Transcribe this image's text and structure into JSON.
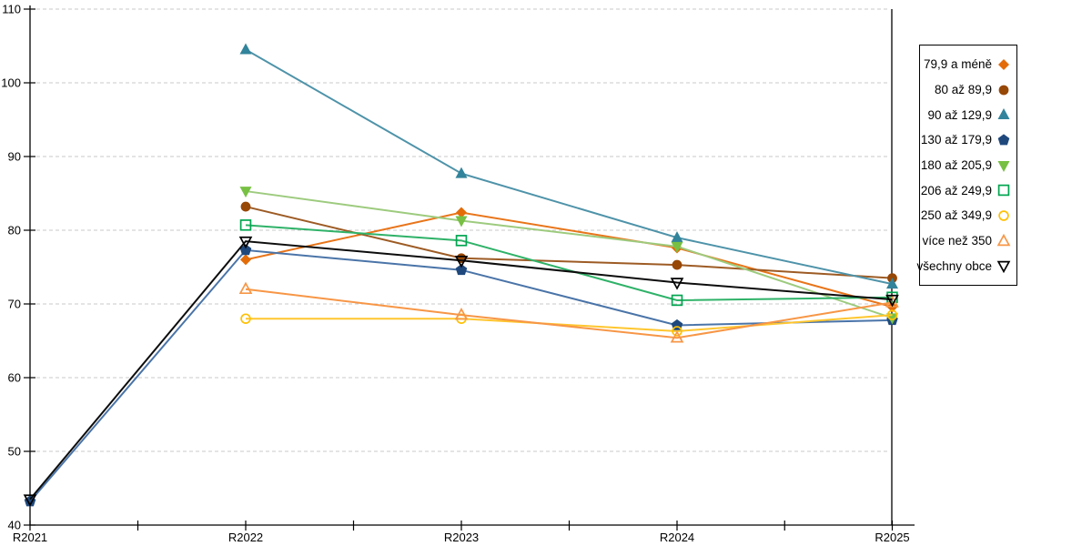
{
  "page": {
    "background": "#FFFFFF"
  },
  "chart_data": {
    "type": "line",
    "title": "",
    "xlabel": "",
    "ylabel": "",
    "categories": [
      "R2021",
      "R2022",
      "R2023",
      "R2024",
      "R2025"
    ],
    "ylim": [
      40,
      110
    ],
    "ytick_step": 10,
    "ytick_labels": [
      "40",
      "50",
      "60",
      "70",
      "80",
      "90",
      "100",
      "110"
    ],
    "grid": "horizontal dashed",
    "grid_color": "#C9C9C9",
    "axis_color": "#000000",
    "legend_position": "right-box",
    "series": [
      {
        "name": "79,9 a méně",
        "marker": "diamond",
        "marker_style": "filled",
        "color": "#E36C09",
        "line_color": "#E8751A",
        "values": [
          null,
          76.0,
          82.4,
          77.6,
          69.6
        ]
      },
      {
        "name": "80 až 89,9",
        "marker": "circle",
        "marker_style": "filled",
        "color": "#974706",
        "line_color": "#9D5B24",
        "values": [
          null,
          83.2,
          76.2,
          75.3,
          73.5
        ]
      },
      {
        "name": "90 až 129,9",
        "marker": "triangle-up",
        "marker_style": "filled",
        "color": "#31849B",
        "line_color": "#4E93A9",
        "values": [
          null,
          104.5,
          87.7,
          79.0,
          72.7
        ]
      },
      {
        "name": "130 až 179,9",
        "marker": "pentagon",
        "marker_style": "filled",
        "color": "#1F497D",
        "line_color": "#4A74A8",
        "values": [
          43.2,
          77.3,
          74.6,
          67.1,
          67.8
        ]
      },
      {
        "name": "180 až 205,9",
        "marker": "triangle-down",
        "marker_style": "filled",
        "color": "#77C043",
        "line_color": "#9DCB7E",
        "values": [
          null,
          85.3,
          81.3,
          77.8,
          68.1
        ]
      },
      {
        "name": "206 až 249,9",
        "marker": "square",
        "marker_style": "open",
        "color": "#00A550",
        "line_color": "#2FB268",
        "values": [
          null,
          80.7,
          78.6,
          70.5,
          70.9
        ]
      },
      {
        "name": "250 až 349,9",
        "marker": "circle",
        "marker_style": "open",
        "color": "#FFC000",
        "line_color": "#FFC62E",
        "values": [
          null,
          68.0,
          68.0,
          66.3,
          68.5
        ]
      },
      {
        "name": "více než 350",
        "marker": "triangle-up",
        "marker_style": "open",
        "color": "#F79646",
        "line_color": "#F79646",
        "values": [
          null,
          72.0,
          68.5,
          65.4,
          70.2
        ]
      },
      {
        "name": "všechny obce",
        "marker": "triangle-down",
        "marker_style": "open",
        "color": "#000000",
        "line_color": "#0D0D0D",
        "values": [
          43.5,
          78.5,
          75.9,
          72.9,
          70.6
        ]
      }
    ]
  }
}
